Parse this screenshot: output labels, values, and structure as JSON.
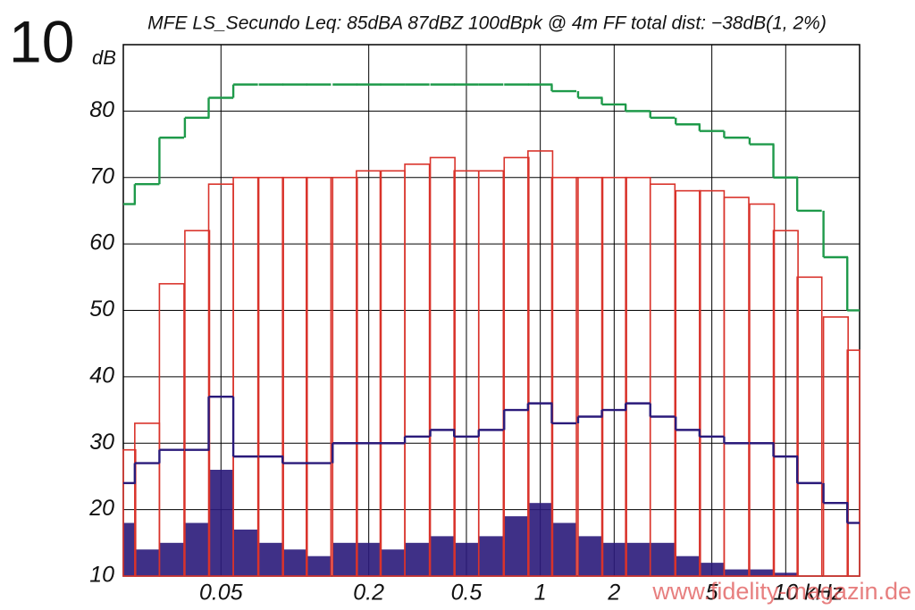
{
  "figure_number": "10",
  "watermark": "www.fidelity-magazin.de",
  "chart_data": {
    "type": "line",
    "title": "MFE LS_Secundo Leq: 85dBA 87dBZ 100dBpk @ 4m FF total dist: −38dB(1, 2%)",
    "y_label": "dB",
    "log_x": true,
    "grid": true,
    "xlim": [
      0.02,
      20
    ],
    "ylim": [
      10,
      90
    ],
    "xticks": [
      0.05,
      0.2,
      0.5,
      1,
      2,
      5,
      {
        "value": 10,
        "label": "10 kHz"
      }
    ],
    "yticks": [
      10,
      20,
      30,
      40,
      50,
      60,
      70,
      80
    ],
    "x": [
      0.02,
      0.025,
      0.0315,
      0.04,
      0.05,
      0.063,
      0.08,
      0.1,
      0.125,
      0.16,
      0.2,
      0.25,
      0.315,
      0.4,
      0.5,
      0.63,
      0.8,
      1,
      1.25,
      1.6,
      2,
      2.5,
      3.15,
      4,
      5,
      6.3,
      8,
      10,
      12.5,
      16,
      20
    ],
    "series": [
      {
        "style": "area",
        "color": "#2a1a7a",
        "values": [
          18,
          14,
          15,
          18,
          26,
          17,
          15,
          14,
          13,
          15,
          15,
          14,
          15,
          16,
          15,
          16,
          19,
          21,
          18,
          16,
          15,
          15,
          15,
          13,
          12,
          11,
          11,
          10.5,
          10,
          10,
          10
        ]
      },
      {
        "style": "bars",
        "color": "#d9332b",
        "values": [
          29,
          33,
          54,
          62,
          69,
          70,
          70,
          70,
          70,
          70,
          71,
          71,
          72,
          73,
          71,
          71,
          73,
          74,
          70,
          70,
          70,
          70,
          69,
          68,
          68,
          67,
          66,
          62,
          55,
          49,
          44
        ]
      },
      {
        "style": "step",
        "color": "#1e9a4a",
        "values": [
          66,
          69,
          76,
          79,
          82,
          84,
          84,
          84,
          84,
          84,
          84,
          84,
          84,
          84,
          84,
          84,
          84,
          84,
          83,
          82,
          81,
          80,
          79,
          78,
          77,
          76,
          75,
          70,
          65,
          58,
          50
        ]
      },
      {
        "style": "step",
        "color": "#2a1a7a",
        "values": [
          24,
          27,
          29,
          29,
          37,
          28,
          28,
          27,
          27,
          30,
          30,
          30,
          31,
          32,
          31,
          32,
          35,
          36,
          33,
          34,
          35,
          36,
          34,
          32,
          31,
          30,
          30,
          28,
          24,
          21,
          18
        ]
      }
    ]
  }
}
